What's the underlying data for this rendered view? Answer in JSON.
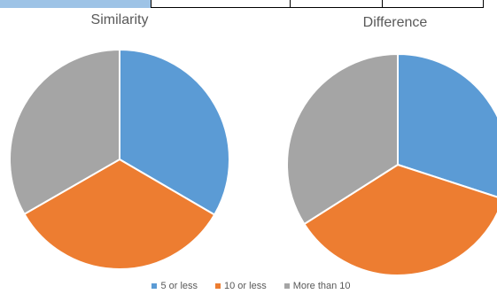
{
  "colors": {
    "blue": "#5b9bd5",
    "orange": "#ed7d31",
    "gray": "#a5a5a5",
    "table_header": "#9dc3e6",
    "table_border": "#000000"
  },
  "legend": [
    {
      "label": "5 or less",
      "color": "#5b9bd5"
    },
    {
      "label": "10 or less",
      "color": "#ed7d31"
    },
    {
      "label": "More than 10",
      "color": "#a5a5a5"
    }
  ],
  "chart_data": [
    {
      "type": "pie",
      "title": "Similarity",
      "categories": [
        "5 or less",
        "10 or less",
        "More than 10"
      ],
      "values": [
        33.4,
        33.3,
        33.3
      ],
      "colors": [
        "#5b9bd5",
        "#ed7d31",
        "#a5a5a5"
      ],
      "legend_position": "bottom"
    },
    {
      "type": "pie",
      "title": "Difference",
      "categories": [
        "5 or less",
        "10 or less",
        "More than 10"
      ],
      "values": [
        30,
        36,
        34
      ],
      "colors": [
        "#5b9bd5",
        "#ed7d31",
        "#a5a5a5"
      ],
      "legend_position": "bottom"
    }
  ]
}
